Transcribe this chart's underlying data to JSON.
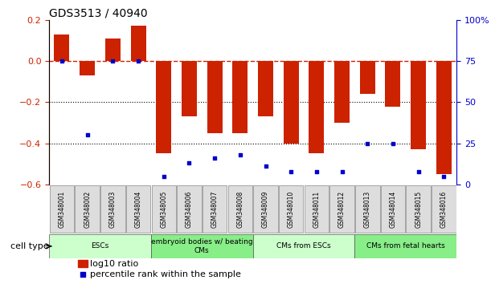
{
  "title": "GDS3513 / 40940",
  "samples": [
    "GSM348001",
    "GSM348002",
    "GSM348003",
    "GSM348004",
    "GSM348005",
    "GSM348006",
    "GSM348007",
    "GSM348008",
    "GSM348009",
    "GSM348010",
    "GSM348011",
    "GSM348012",
    "GSM348013",
    "GSM348014",
    "GSM348015",
    "GSM348016"
  ],
  "log10_ratio": [
    0.13,
    -0.07,
    0.11,
    0.17,
    -0.45,
    -0.27,
    -0.35,
    -0.35,
    -0.27,
    -0.4,
    -0.45,
    -0.3,
    -0.16,
    -0.22,
    -0.43,
    -0.55
  ],
  "percentile_rank": [
    75,
    30,
    75,
    75,
    5,
    13,
    16,
    18,
    11,
    8,
    8,
    8,
    25,
    25,
    8,
    5
  ],
  "cell_type_groups": [
    {
      "label": "ESCs",
      "start": 0,
      "end": 3
    },
    {
      "label": "embryoid bodies w/ beating\nCMs",
      "start": 4,
      "end": 7
    },
    {
      "label": "CMs from ESCs",
      "start": 8,
      "end": 11
    },
    {
      "label": "CMs from fetal hearts",
      "start": 12,
      "end": 15
    }
  ],
  "group_colors": [
    "#ccffcc",
    "#88ee88",
    "#ccffcc",
    "#88ee88"
  ],
  "bar_color": "#cc2200",
  "dot_color": "#0000cc",
  "left_ylim": [
    -0.6,
    0.2
  ],
  "right_ylim": [
    0,
    100
  ],
  "left_yticks": [
    -0.6,
    -0.4,
    -0.2,
    0.0,
    0.2
  ],
  "right_yticks": [
    0,
    25,
    50,
    75,
    100
  ],
  "right_yticklabels": [
    "0",
    "25",
    "50",
    "75",
    "100%"
  ],
  "hline_y": 0.0,
  "dotted_lines": [
    -0.2,
    -0.4
  ],
  "bar_width": 0.6,
  "sample_box_color": "#dddddd",
  "xlim_left": -0.5,
  "xlim_right": 15.5
}
